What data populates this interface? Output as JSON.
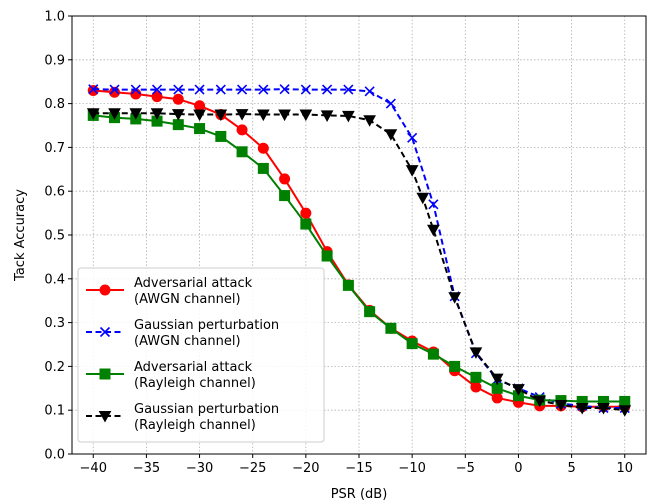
{
  "chart_data": {
    "type": "line",
    "title": "",
    "xlabel": "PSR (dB)",
    "ylabel": "Tack Accuracy",
    "xlim": [
      -42,
      12
    ],
    "ylim": [
      0.0,
      1.0
    ],
    "xticks": [
      -40,
      -35,
      -30,
      -25,
      -20,
      -15,
      -10,
      -5,
      0,
      5,
      10
    ],
    "xtick_labels": [
      "−40",
      "−35",
      "−30",
      "−25",
      "−20",
      "−15",
      "−10",
      "−5",
      "0",
      "5",
      "10"
    ],
    "yticks": [
      0.0,
      0.1,
      0.2,
      0.3,
      0.4,
      0.5,
      0.6,
      0.7,
      0.8,
      0.9,
      1.0
    ],
    "ytick_labels": [
      "0.0",
      "0.1",
      "0.2",
      "0.3",
      "0.4",
      "0.5",
      "0.6",
      "0.7",
      "0.8",
      "0.9",
      "1.0"
    ],
    "grid": true,
    "legend_position": "lower-left",
    "x": [
      -40,
      -38,
      -36,
      -34,
      -32,
      -30,
      -28,
      -26,
      -24,
      -22,
      -20,
      -18,
      -16,
      -14,
      -12,
      -10,
      -9,
      -8,
      -6,
      -4,
      -2,
      0,
      2,
      4,
      6,
      8,
      10
    ],
    "series": [
      {
        "name": "Adversarial attack\n(AWGN channel)",
        "legend_lines": [
          "Adversarial attack",
          "(AWGN channel)"
        ],
        "color": "#ff0000",
        "marker": "circle",
        "linestyle": "solid",
        "x": [
          -40,
          -38,
          -36,
          -34,
          -32,
          -30,
          -28,
          -26,
          -24,
          -22,
          -20,
          -18,
          -16,
          -14,
          -12,
          -10,
          -8,
          -6,
          -4,
          -2,
          0,
          2,
          4,
          6,
          8,
          10
        ],
        "values": [
          0.83,
          0.826,
          0.822,
          0.816,
          0.81,
          0.795,
          0.775,
          0.74,
          0.698,
          0.628,
          0.55,
          0.462,
          0.386,
          0.328,
          0.287,
          0.258,
          0.233,
          0.19,
          0.153,
          0.128,
          0.118,
          0.11,
          0.11,
          0.108,
          0.108,
          0.108
        ]
      },
      {
        "name": "Gaussian perturbation\n(AWGN channel)",
        "legend_lines": [
          "Gaussian perturbation",
          "(AWGN channel)"
        ],
        "color": "#0000ff",
        "marker": "x",
        "linestyle": "dashed",
        "x": [
          -40,
          -38,
          -36,
          -34,
          -32,
          -30,
          -28,
          -26,
          -24,
          -22,
          -20,
          -18,
          -16,
          -14,
          -12,
          -10,
          -8,
          -6,
          -4,
          -2,
          0,
          2,
          4,
          6,
          8,
          10
        ],
        "values": [
          0.833,
          0.832,
          0.832,
          0.832,
          0.832,
          0.832,
          0.832,
          0.832,
          0.832,
          0.833,
          0.832,
          0.832,
          0.832,
          0.828,
          0.8,
          0.722,
          0.57,
          0.36,
          0.23,
          0.17,
          0.15,
          0.13,
          0.115,
          0.11,
          0.105,
          0.105
        ]
      },
      {
        "name": "Adversarial attack\n(Rayleigh channel)",
        "legend_lines": [
          "Adversarial attack",
          "(Rayleigh channel)"
        ],
        "color": "#008000",
        "marker": "square",
        "linestyle": "solid",
        "x": [
          -40,
          -38,
          -36,
          -34,
          -32,
          -30,
          -28,
          -26,
          -24,
          -22,
          -20,
          -18,
          -16,
          -14,
          -12,
          -10,
          -8,
          -6,
          -4,
          -2,
          0,
          2,
          4,
          6,
          8,
          10
        ],
        "values": [
          0.773,
          0.768,
          0.765,
          0.76,
          0.752,
          0.743,
          0.725,
          0.69,
          0.652,
          0.59,
          0.525,
          0.452,
          0.385,
          0.325,
          0.287,
          0.252,
          0.228,
          0.2,
          0.175,
          0.15,
          0.133,
          0.123,
          0.122,
          0.12,
          0.12,
          0.12
        ]
      },
      {
        "name": "Gaussian perturbation\n(Rayleigh channel)",
        "legend_lines": [
          "Gaussian perturbation",
          "(Rayleigh channel)"
        ],
        "color": "#000000",
        "marker": "triangle-down",
        "linestyle": "dashed",
        "x": [
          -40,
          -38,
          -36,
          -34,
          -32,
          -30,
          -28,
          -26,
          -24,
          -22,
          -20,
          -18,
          -16,
          -14,
          -12,
          -10,
          -9,
          -8,
          -6,
          -4,
          -2,
          0,
          2,
          4,
          6,
          8,
          10
        ],
        "values": [
          0.778,
          0.778,
          0.778,
          0.778,
          0.776,
          0.775,
          0.775,
          0.776,
          0.775,
          0.775,
          0.775,
          0.773,
          0.772,
          0.762,
          0.73,
          0.648,
          0.585,
          0.512,
          0.358,
          0.232,
          0.172,
          0.148,
          0.122,
          0.112,
          0.105,
          0.105,
          0.1
        ]
      }
    ]
  }
}
